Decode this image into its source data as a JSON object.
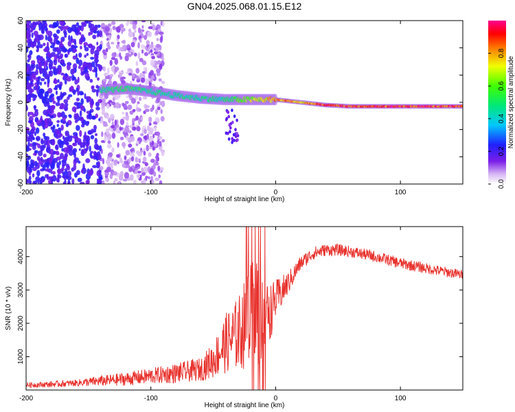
{
  "title": "GN04.2025.068.01.15.E12",
  "chart_data": [
    {
      "type": "heatmap",
      "title": "GN04.2025.068.01.15.E12",
      "xlabel": "Height of straight line (km)",
      "ylabel": "Frequency (Hz)",
      "xlim": [
        -200,
        150
      ],
      "ylim": [
        -60,
        60
      ],
      "xticks": [
        "-200",
        "-100",
        "0",
        "100"
      ],
      "yticks": [
        "60",
        "40",
        "20",
        "0",
        "-20",
        "-40",
        "-60"
      ],
      "colorbar": {
        "label": "Normalized spectral amplitude",
        "ticks": [
          "0.0",
          "0.2",
          "0.4",
          "0.6",
          "0.8"
        ],
        "range": [
          0,
          1
        ],
        "colormap": "rainbow (white-violet-blue-cyan-green-yellow-red-magenta)"
      },
      "ridge": {
        "x": [
          -140,
          -120,
          -100,
          -80,
          -60,
          -40,
          -20,
          0,
          10,
          20,
          40,
          60,
          80,
          100,
          120,
          150
        ],
        "frequency": [
          9,
          10,
          8,
          5,
          3,
          2,
          2,
          2,
          1,
          0,
          -2,
          -3,
          -3,
          -3,
          -3,
          -3
        ],
        "amplitude": [
          0.5,
          0.55,
          0.5,
          0.5,
          0.5,
          0.5,
          0.7,
          0.85,
          0.9,
          0.8,
          0.95,
          0.95,
          0.95,
          0.95,
          0.95,
          0.95
        ]
      },
      "grid": false
    },
    {
      "type": "line",
      "xlabel": "Height of straight line (km)",
      "ylabel": "SNR (10 * v/v)",
      "xlim": [
        -200,
        150
      ],
      "ylim": [
        0,
        4900
      ],
      "xticks": [
        "-200",
        "-100",
        "0",
        "100"
      ],
      "yticks": [
        "1000",
        "2000",
        "3000",
        "4000"
      ],
      "series_color": "#e8312c",
      "envelope": {
        "x": [
          -200,
          -180,
          -160,
          -140,
          -120,
          -100,
          -80,
          -70,
          -60,
          -50,
          -40,
          -30,
          -20,
          -15,
          -10,
          -5,
          0,
          10,
          20,
          30,
          40,
          50,
          60,
          80,
          100,
          120,
          150
        ],
        "y": [
          150,
          170,
          210,
          270,
          330,
          420,
          500,
          560,
          620,
          900,
          1400,
          1700,
          2200,
          2400,
          2200,
          2300,
          2700,
          3200,
          3800,
          4100,
          4200,
          4200,
          4150,
          4000,
          3800,
          3650,
          3450
        ],
        "noise": [
          80,
          90,
          100,
          160,
          200,
          240,
          300,
          320,
          350,
          550,
          900,
          1100,
          1600,
          1800,
          1200,
          900,
          600,
          350,
          220,
          200,
          180,
          180,
          170,
          170,
          170,
          160,
          150
        ]
      },
      "grid": false
    }
  ]
}
